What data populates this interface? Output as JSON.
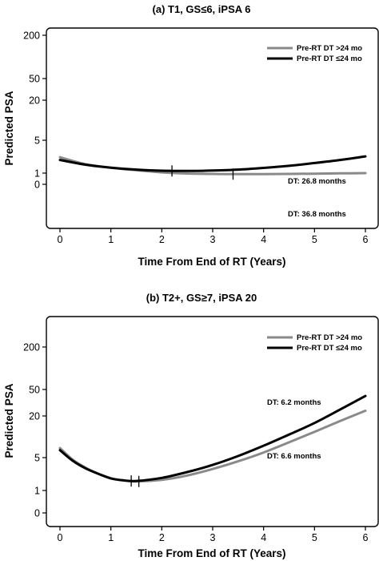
{
  "chart_data": [
    {
      "type": "line",
      "title": "(a) T1, GS≤6, iPSA 6",
      "xlabel": "Time From End of RT (Years)",
      "ylabel": "Predicted PSA",
      "xlim": [
        0,
        6
      ],
      "x_ticks": [
        0,
        1,
        2,
        3,
        4,
        5,
        6
      ],
      "y_ticks": [
        0,
        1,
        5,
        20,
        50,
        200
      ],
      "grid": false,
      "legend": "top-right",
      "series": [
        {
          "name": "Pre-RT DT >24 mo",
          "color": "#8a8a8a",
          "x": [
            0,
            0.5,
            1,
            1.5,
            2,
            2.5,
            3,
            3.5,
            4,
            4.5,
            5,
            5.5,
            6
          ],
          "y": [
            2.4,
            1.7,
            1.4,
            1.2,
            1.05,
            0.95,
            0.9,
            0.88,
            0.88,
            0.9,
            0.93,
            0.97,
            1.0
          ],
          "nadir": {
            "x": 3.4,
            "y": 0.88
          },
          "annotation": "DT: 36.8 months"
        },
        {
          "name": "Pre-RT DT ≤24 mo",
          "color": "#000000",
          "x": [
            0,
            0.5,
            1,
            1.5,
            2,
            2.5,
            3,
            3.5,
            4,
            4.5,
            5,
            5.5,
            6
          ],
          "y": [
            2.1,
            1.65,
            1.4,
            1.25,
            1.17,
            1.15,
            1.18,
            1.25,
            1.38,
            1.55,
            1.8,
            2.1,
            2.5
          ],
          "nadir": {
            "x": 2.2,
            "y": 1.15
          },
          "annotation": "DT: 26.8 months"
        }
      ]
    },
    {
      "type": "line",
      "title": "(b) T2+, GS≥7, iPSA 20",
      "xlabel": "Time From End of RT (Years)",
      "ylabel": "Predicted PSA",
      "xlim": [
        0,
        6
      ],
      "x_ticks": [
        0,
        1,
        2,
        3,
        4,
        5,
        6
      ],
      "y_ticks": [
        0,
        1,
        5,
        20,
        50,
        200
      ],
      "grid": false,
      "legend": "top-right",
      "series": [
        {
          "name": "Pre-RT DT >24 mo",
          "color": "#8a8a8a",
          "x": [
            0,
            0.25,
            0.5,
            0.75,
            1,
            1.25,
            1.5,
            2,
            2.5,
            3,
            3.5,
            4,
            4.5,
            5,
            5.5,
            6
          ],
          "y": [
            7.0,
            4.6,
            3.3,
            2.5,
            2.0,
            1.8,
            1.7,
            1.85,
            2.3,
            3.1,
            4.3,
            6.0,
            8.5,
            12.0,
            17.0,
            24.0
          ],
          "nadir": {
            "x": 1.55,
            "y": 1.7
          },
          "annotation": "DT: 6.6 months"
        },
        {
          "name": "Pre-RT DT ≤24 mo",
          "color": "#000000",
          "x": [
            0,
            0.25,
            0.5,
            0.75,
            1,
            1.25,
            1.5,
            2,
            2.5,
            3,
            3.5,
            4,
            4.5,
            5,
            5.5,
            6
          ],
          "y": [
            6.5,
            4.4,
            3.2,
            2.5,
            2.0,
            1.8,
            1.75,
            2.05,
            2.7,
            3.7,
            5.3,
            7.6,
            11.0,
            16.0,
            25.0,
            40.0
          ],
          "nadir": {
            "x": 1.4,
            "y": 1.75
          },
          "annotation": "DT: 6.2 months"
        }
      ]
    }
  ]
}
